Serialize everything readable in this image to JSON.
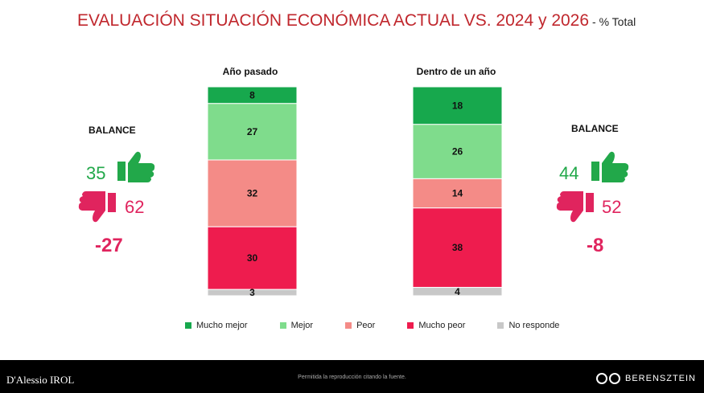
{
  "header": {
    "title": "EVALUACIÓN SITUACIÓN ECONÓMICA ACTUAL VS. 2024 y 2026",
    "subtitle": "- % Total"
  },
  "chart_data": {
    "type": "bar",
    "stacked": true,
    "categories": [
      "Año pasado",
      "Dentro de un año"
    ],
    "series": [
      {
        "name": "Mucho mejor",
        "values": [
          8,
          18
        ]
      },
      {
        "name": "Mejor",
        "values": [
          27,
          26
        ]
      },
      {
        "name": "Peor",
        "values": [
          32,
          14
        ]
      },
      {
        "name": "Mucho peor",
        "values": [
          30,
          38
        ]
      },
      {
        "name": "No responde",
        "values": [
          3,
          4
        ]
      }
    ],
    "colors": {
      "Mucho mejor": "#17a84d",
      "Mejor": "#7fdc8c",
      "Peor": "#f48b87",
      "Mucho peor": "#ee1c4e",
      "No responde": "#c8c8c8"
    },
    "legend_position": "bottom"
  },
  "balance_left": {
    "label": "BALANCE",
    "positive": "35",
    "negative": "62",
    "net": "-27",
    "positive_icon": "thumbs-up-icon",
    "negative_icon": "thumbs-down-icon"
  },
  "balance_right": {
    "label": "BALANCE",
    "positive": "44",
    "negative": "52",
    "net": "-8",
    "positive_icon": "thumbs-up-icon",
    "negative_icon": "thumbs-down-icon"
  },
  "footer": {
    "left_brand": "D'Alessio IROL",
    "center_text": "Permitida la reproducción citando la fuente.",
    "right_brand": "BERENSZTEIN"
  },
  "colors": {
    "title": "#c0272d",
    "positive": "#22a84a",
    "negative": "#e0245e"
  }
}
